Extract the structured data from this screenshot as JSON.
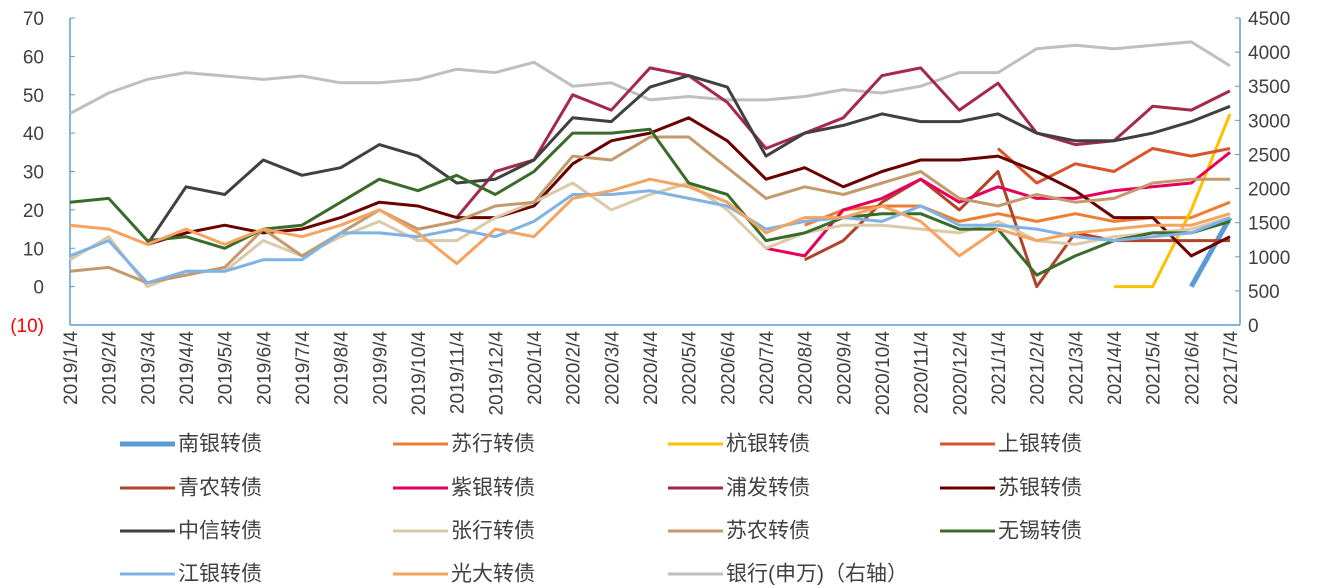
{
  "chart_data": {
    "type": "line",
    "categories": [
      "2019/1/4",
      "2019/2/4",
      "2019/3/4",
      "2019/4/4",
      "2019/5/4",
      "2019/6/4",
      "2019/7/4",
      "2019/8/4",
      "2019/9/4",
      "2019/10/4",
      "2019/11/4",
      "2019/12/4",
      "2020/1/4",
      "2020/2/4",
      "2020/3/4",
      "2020/4/4",
      "2020/5/4",
      "2020/6/4",
      "2020/7/4",
      "2020/8/4",
      "2020/9/4",
      "2020/10/4",
      "2020/11/4",
      "2020/12/4",
      "2021/1/4",
      "2021/2/4",
      "2021/3/4",
      "2021/4/4",
      "2021/5/4",
      "2021/6/4",
      "2021/7/4"
    ],
    "ylim": [
      -10,
      70
    ],
    "yticks": [
      {
        "value": -10,
        "label": "(10)"
      },
      0,
      10,
      20,
      30,
      40,
      50,
      60,
      70
    ],
    "negative_tick_color": "#ff0000",
    "y2lim": [
      0,
      4500
    ],
    "y2ticks": [
      0,
      500,
      1000,
      1500,
      2000,
      2500,
      3000,
      3500,
      4000,
      4500
    ],
    "series": [
      {
        "name": "南银转债",
        "color": "#5b9bd5",
        "values": [
          null,
          null,
          null,
          null,
          null,
          null,
          null,
          null,
          null,
          null,
          null,
          null,
          null,
          null,
          null,
          null,
          null,
          null,
          null,
          null,
          null,
          null,
          null,
          null,
          null,
          null,
          null,
          null,
          null,
          0,
          18
        ]
      },
      {
        "name": "苏行转债",
        "color": "#ed7d31",
        "values": [
          null,
          null,
          null,
          null,
          null,
          null,
          null,
          null,
          null,
          null,
          null,
          null,
          null,
          null,
          null,
          null,
          null,
          null,
          null,
          16,
          20,
          21,
          21,
          17,
          19,
          17,
          19,
          17,
          18,
          18,
          22
        ]
      },
      {
        "name": "杭银转债",
        "color": "#ffc000",
        "values": [
          null,
          null,
          null,
          null,
          null,
          null,
          null,
          null,
          null,
          null,
          null,
          null,
          null,
          null,
          null,
          null,
          null,
          null,
          null,
          null,
          null,
          null,
          null,
          null,
          null,
          null,
          null,
          0,
          0,
          20,
          45
        ]
      },
      {
        "name": "上银转债",
        "color": "#d9532b",
        "values": [
          null,
          null,
          null,
          null,
          null,
          null,
          null,
          null,
          null,
          null,
          null,
          null,
          null,
          null,
          null,
          null,
          null,
          null,
          null,
          null,
          null,
          null,
          null,
          null,
          36,
          27,
          32,
          30,
          36,
          34,
          36
        ]
      },
      {
        "name": "青农转债",
        "color": "#b0442a",
        "values": [
          null,
          null,
          null,
          null,
          null,
          null,
          null,
          null,
          null,
          null,
          null,
          null,
          null,
          null,
          null,
          null,
          null,
          null,
          null,
          7,
          12,
          22,
          28,
          20,
          30,
          0,
          14,
          12,
          12,
          12,
          12
        ]
      },
      {
        "name": "紫银转债",
        "color": "#e6005c",
        "values": [
          null,
          null,
          null,
          null,
          null,
          null,
          null,
          null,
          null,
          null,
          null,
          null,
          null,
          null,
          null,
          null,
          null,
          null,
          10,
          8,
          20,
          23,
          28,
          22,
          26,
          23,
          23,
          25,
          26,
          27,
          35
        ]
      },
      {
        "name": "浦发转债",
        "color": "#a52a4a",
        "values": [
          null,
          null,
          null,
          null,
          null,
          null,
          null,
          null,
          null,
          null,
          18,
          30,
          33,
          50,
          46,
          57,
          55,
          48,
          36,
          40,
          44,
          55,
          57,
          46,
          53,
          40,
          37,
          38,
          47,
          46,
          51
        ]
      },
      {
        "name": "苏银转债",
        "color": "#6b0000",
        "values": [
          null,
          null,
          11,
          14,
          16,
          14,
          15,
          18,
          22,
          21,
          18,
          18,
          21,
          32,
          38,
          40,
          44,
          38,
          28,
          31,
          26,
          30,
          33,
          33,
          34,
          30,
          25,
          18,
          18,
          8,
          13
        ]
      },
      {
        "name": "中信转债",
        "color": "#404040",
        "values": [
          null,
          null,
          11,
          26,
          24,
          33,
          29,
          31,
          37,
          34,
          27,
          28,
          33,
          44,
          43,
          52,
          55,
          52,
          34,
          40,
          42,
          45,
          43,
          43,
          45,
          40,
          38,
          38,
          40,
          43,
          47
        ]
      },
      {
        "name": "张行转债",
        "color": "#dcc9a8",
        "values": [
          7,
          13,
          0,
          4,
          4,
          12,
          8,
          13,
          17,
          12,
          12,
          18,
          22,
          27,
          20,
          24,
          27,
          20,
          10,
          14,
          16,
          16,
          15,
          14,
          17,
          12,
          11,
          13,
          14,
          15,
          18
        ]
      },
      {
        "name": "苏农转债",
        "color": "#c49a6c",
        "values": [
          4,
          5,
          1,
          3,
          5,
          15,
          8,
          14,
          20,
          15,
          17,
          21,
          22,
          34,
          33,
          39,
          39,
          31,
          23,
          26,
          24,
          27,
          30,
          23,
          21,
          24,
          22,
          23,
          27,
          28,
          28
        ]
      },
      {
        "name": "无锡转债",
        "color": "#3b6b2a",
        "values": [
          22,
          23,
          12,
          13,
          10,
          15,
          16,
          22,
          28,
          25,
          29,
          24,
          30,
          40,
          40,
          41,
          27,
          24,
          12,
          14,
          18,
          19,
          19,
          15,
          15,
          3,
          8,
          12,
          14,
          14,
          17
        ]
      },
      {
        "name": "江银转债",
        "color": "#7fb2e5",
        "values": [
          8,
          12,
          1,
          4,
          4,
          7,
          7,
          14,
          14,
          13,
          15,
          13,
          17,
          24,
          24,
          25,
          23,
          21,
          15,
          17,
          18,
          17,
          21,
          16,
          16,
          15,
          13,
          12,
          13,
          14,
          18
        ]
      },
      {
        "name": "光大转债",
        "color": "#f4a460",
        "values": [
          16,
          15,
          11,
          15,
          11,
          15,
          13,
          16,
          20,
          14,
          6,
          15,
          13,
          23,
          25,
          28,
          26,
          22,
          14,
          18,
          18,
          21,
          17,
          8,
          15,
          12,
          14,
          15,
          16,
          16,
          19
        ]
      },
      {
        "name": "银行(申万)（右轴）",
        "color": "#bfbfbf",
        "axis": "y2",
        "values": [
          3100,
          3400,
          3600,
          3700,
          3650,
          3600,
          3650,
          3550,
          3550,
          3600,
          3750,
          3700,
          3850,
          3500,
          3550,
          3300,
          3350,
          3300,
          3300,
          3350,
          3450,
          3400,
          3500,
          3700,
          3700,
          4050,
          4100,
          4050,
          4100,
          4150,
          3800
        ]
      }
    ]
  }
}
